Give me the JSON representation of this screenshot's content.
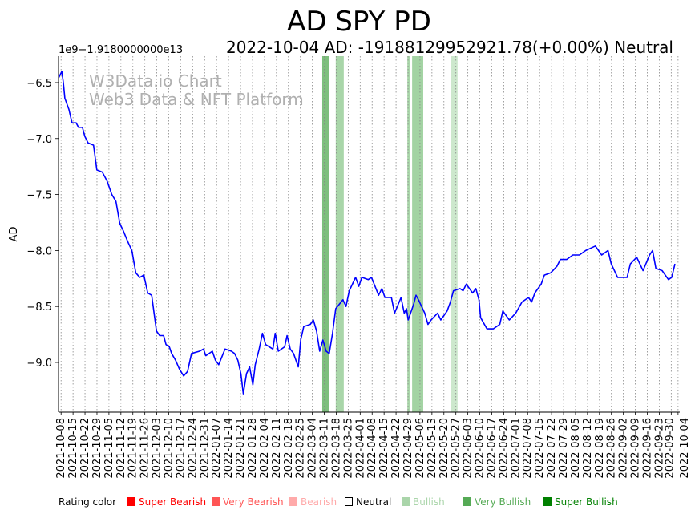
{
  "chart_data": {
    "type": "line",
    "title": "AD SPY PD",
    "subtitle": "2022-10-04 AD: -19188129952921.78(+0.00%) Neutral",
    "offset_label": "1e9−1.9180000000e13",
    "ylabel": "AD",
    "xlabel": "",
    "watermark": [
      "W3Data.io Chart",
      "Web3 Data & NFT Platform"
    ],
    "x_unit": "days since 2021-10-08",
    "xlim": [
      -1.5,
      362
    ],
    "ylim": [
      -9.444,
      -6.264
    ],
    "yticks": [
      -6.5,
      -7.0,
      -7.5,
      -8.0,
      -8.5,
      -9.0
    ],
    "ytick_labels": [
      "−6.5",
      "−7.0",
      "−7.5",
      "−8.0",
      "−8.5",
      "−9.0"
    ],
    "xtick_labels": [
      "2021-10-08",
      "2021-10-15",
      "2021-10-22",
      "2021-10-29",
      "2021-11-05",
      "2021-11-12",
      "2021-11-19",
      "2021-11-26",
      "2021-12-03",
      "2021-12-10",
      "2021-12-17",
      "2021-12-24",
      "2021-12-31",
      "2022-01-07",
      "2022-01-14",
      "2022-01-21",
      "2022-01-28",
      "2022-02-04",
      "2022-02-11",
      "2022-02-18",
      "2022-02-25",
      "2022-03-04",
      "2022-03-11",
      "2022-03-18",
      "2022-03-25",
      "2022-04-01",
      "2022-04-08",
      "2022-04-15",
      "2022-04-22",
      "2022-04-29",
      "2022-05-06",
      "2022-05-13",
      "2022-05-20",
      "2022-05-27",
      "2022-06-03",
      "2022-06-10",
      "2022-06-17",
      "2022-06-24",
      "2022-07-01",
      "2022-07-08",
      "2022-07-15",
      "2022-07-22",
      "2022-07-29",
      "2022-08-05",
      "2022-08-12",
      "2022-08-19",
      "2022-08-26",
      "2022-09-02",
      "2022-09-09",
      "2022-09-16",
      "2022-09-23",
      "2022-09-30",
      "2022-10-04"
    ],
    "grid": "vertical dotted",
    "series": [
      {
        "name": "AD",
        "color": "#0000ff",
        "points": [
          [
            -1.5,
            -6.46
          ],
          [
            0.4,
            -6.4
          ],
          [
            1.3,
            -6.5
          ],
          [
            2.2,
            -6.64
          ],
          [
            4.6,
            -6.74
          ],
          [
            6.4,
            -6.86
          ],
          [
            8.8,
            -6.86
          ],
          [
            10.2,
            -6.9
          ],
          [
            12.5,
            -6.9
          ],
          [
            13.9,
            -6.98
          ],
          [
            15.8,
            -7.04
          ],
          [
            19.0,
            -7.06
          ],
          [
            20.9,
            -7.28
          ],
          [
            24.1,
            -7.3
          ],
          [
            26.9,
            -7.38
          ],
          [
            29.7,
            -7.5
          ],
          [
            32.1,
            -7.56
          ],
          [
            34.4,
            -7.76
          ],
          [
            36.3,
            -7.82
          ],
          [
            39.0,
            -7.92
          ],
          [
            41.4,
            -8.0
          ],
          [
            43.7,
            -8.2
          ],
          [
            46.0,
            -8.24
          ],
          [
            48.4,
            -8.22
          ],
          [
            50.7,
            -8.38
          ],
          [
            53.0,
            -8.4
          ],
          [
            54.4,
            -8.56
          ],
          [
            55.8,
            -8.72
          ],
          [
            57.7,
            -8.76
          ],
          [
            60.0,
            -8.76
          ],
          [
            61.4,
            -8.84
          ],
          [
            63.3,
            -8.86
          ],
          [
            64.7,
            -8.92
          ],
          [
            67.0,
            -8.98
          ],
          [
            69.3,
            -9.06
          ],
          [
            71.7,
            -9.12
          ],
          [
            74.0,
            -9.08
          ],
          [
            76.3,
            -8.92
          ],
          [
            81.0,
            -8.9
          ],
          [
            83.3,
            -8.88
          ],
          [
            84.7,
            -8.94
          ],
          [
            88.5,
            -8.9
          ],
          [
            90.3,
            -8.98
          ],
          [
            92.2,
            -9.02
          ],
          [
            95.9,
            -8.88
          ],
          [
            99.6,
            -8.9
          ],
          [
            101.5,
            -8.92
          ],
          [
            103.4,
            -8.98
          ],
          [
            105.2,
            -9.1
          ],
          [
            106.6,
            -9.28
          ],
          [
            108.5,
            -9.1
          ],
          [
            110.3,
            -9.04
          ],
          [
            112.2,
            -9.2
          ],
          [
            113.6,
            -9.02
          ],
          [
            115.9,
            -8.88
          ],
          [
            117.8,
            -8.74
          ],
          [
            119.7,
            -8.84
          ],
          [
            123.9,
            -8.88
          ],
          [
            125.3,
            -8.74
          ],
          [
            127.1,
            -8.9
          ],
          [
            130.8,
            -8.86
          ],
          [
            132.2,
            -8.76
          ],
          [
            134.1,
            -8.88
          ],
          [
            136.0,
            -8.92
          ],
          [
            138.8,
            -9.04
          ],
          [
            140.2,
            -8.8
          ],
          [
            142.0,
            -8.68
          ],
          [
            145.8,
            -8.66
          ],
          [
            147.6,
            -8.62
          ],
          [
            149.5,
            -8.72
          ],
          [
            151.3,
            -8.9
          ],
          [
            153.2,
            -8.8
          ],
          [
            155.1,
            -8.9
          ],
          [
            156.9,
            -8.92
          ],
          [
            158.8,
            -8.74
          ],
          [
            160.7,
            -8.52
          ],
          [
            164.9,
            -8.44
          ],
          [
            166.7,
            -8.5
          ],
          [
            168.6,
            -8.36
          ],
          [
            172.3,
            -8.24
          ],
          [
            174.2,
            -8.32
          ],
          [
            176.0,
            -8.24
          ],
          [
            179.8,
            -8.26
          ],
          [
            181.6,
            -8.24
          ],
          [
            185.8,
            -8.4
          ],
          [
            187.7,
            -8.34
          ],
          [
            189.5,
            -8.42
          ],
          [
            193.3,
            -8.42
          ],
          [
            195.1,
            -8.56
          ],
          [
            198.9,
            -8.42
          ],
          [
            200.8,
            -8.56
          ],
          [
            202.1,
            -8.52
          ],
          [
            203.1,
            -8.62
          ],
          [
            204.5,
            -8.56
          ],
          [
            206.3,
            -8.48
          ],
          [
            207.7,
            -8.4
          ],
          [
            209.1,
            -8.44
          ],
          [
            212.8,
            -8.56
          ],
          [
            214.7,
            -8.66
          ],
          [
            216.5,
            -8.62
          ],
          [
            220.3,
            -8.56
          ],
          [
            222.2,
            -8.62
          ],
          [
            225.9,
            -8.54
          ],
          [
            227.8,
            -8.46
          ],
          [
            229.6,
            -8.36
          ],
          [
            233.4,
            -8.34
          ],
          [
            235.2,
            -8.36
          ],
          [
            237.1,
            -8.3
          ],
          [
            240.8,
            -8.38
          ],
          [
            242.7,
            -8.34
          ],
          [
            244.5,
            -8.44
          ],
          [
            245.5,
            -8.6
          ],
          [
            249.2,
            -8.7
          ],
          [
            252.9,
            -8.7
          ],
          [
            256.7,
            -8.66
          ],
          [
            258.5,
            -8.54
          ],
          [
            262.3,
            -8.62
          ],
          [
            266.0,
            -8.56
          ],
          [
            269.7,
            -8.46
          ],
          [
            273.5,
            -8.42
          ],
          [
            275.3,
            -8.46
          ],
          [
            277.2,
            -8.38
          ],
          [
            280.9,
            -8.3
          ],
          [
            282.8,
            -8.22
          ],
          [
            286.5,
            -8.2
          ],
          [
            290.2,
            -8.14
          ],
          [
            292.1,
            -8.08
          ],
          [
            295.8,
            -8.08
          ],
          [
            299.5,
            -8.04
          ],
          [
            303.3,
            -8.04
          ],
          [
            307.0,
            -8.0
          ],
          [
            312.6,
            -7.96
          ],
          [
            316.3,
            -8.04
          ],
          [
            320.0,
            -8.0
          ],
          [
            321.9,
            -8.12
          ],
          [
            325.6,
            -8.24
          ],
          [
            331.2,
            -8.24
          ],
          [
            333.1,
            -8.12
          ],
          [
            336.8,
            -8.06
          ],
          [
            340.5,
            -8.18
          ],
          [
            344.3,
            -8.04
          ],
          [
            346.1,
            -8.0
          ],
          [
            348.0,
            -8.16
          ],
          [
            351.7,
            -8.18
          ],
          [
            355.4,
            -8.26
          ],
          [
            357.3,
            -8.24
          ],
          [
            359.2,
            -8.12
          ]
        ]
      }
    ],
    "rating_bands": [
      {
        "start": 152.8,
        "end": 157.0,
        "rating": "Very Bullish",
        "color": "#7dbf7d"
      },
      {
        "start": 160.7,
        "end": 165.4,
        "rating": "Bullish",
        "color": "#a9d6a9"
      },
      {
        "start": 202.6,
        "end": 204.0,
        "rating": "Bullish",
        "color": "#a9d6a9"
      },
      {
        "start": 205.4,
        "end": 211.9,
        "rating": "Bullish",
        "color": "#a3d3a3"
      },
      {
        "start": 228.2,
        "end": 232.0,
        "rating": "Bullish",
        "color": "#cde8cd"
      }
    ],
    "legend": {
      "title": "Rating color",
      "placement": "bottom",
      "items": [
        {
          "label": "Super Bearish",
          "color": "#ff0000",
          "text_color": "#ff0000"
        },
        {
          "label": "Very Bearish",
          "color": "#ff5555",
          "text_color": "#ff5555"
        },
        {
          "label": "Bearish",
          "color": "#ffaaaa",
          "text_color": "#ffaaaa"
        },
        {
          "label": "Neutral",
          "color": "none",
          "text_color": "#000000"
        },
        {
          "label": "Bullish",
          "color": "#aad5aa",
          "text_color": "#aad5aa"
        },
        {
          "label": "Very Bullish",
          "color": "#55aa55",
          "text_color": "#55aa55"
        },
        {
          "label": "Super Bullish",
          "color": "#008000",
          "text_color": "#008000"
        }
      ]
    }
  }
}
